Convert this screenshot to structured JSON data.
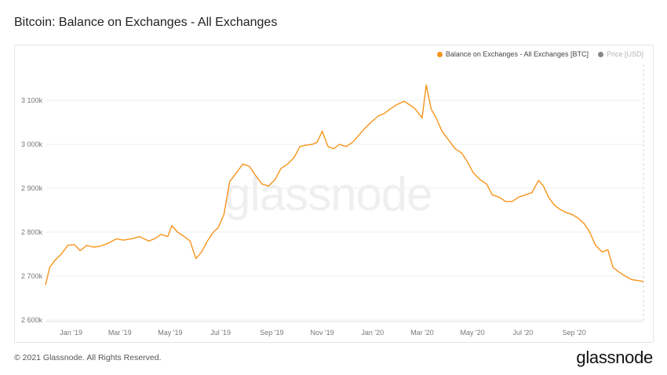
{
  "title": "Bitcoin: Balance on Exchanges - All Exchanges",
  "footer": {
    "copyright": "© 2021 Glassnode. All Rights Reserved.",
    "logo": "glassnode"
  },
  "watermark": "glassnode",
  "legend": {
    "series_label": "Balance on Exchanges - All Exchanges [BTC]",
    "series_color": "#f7931a",
    "price_label": "Price [USD]",
    "price_color": "#888888"
  },
  "chart_data": {
    "type": "line",
    "title": "Bitcoin: Balance on Exchanges - All Exchanges",
    "xlabel": "",
    "ylabel": "",
    "ylim": [
      2600000,
      3200000
    ],
    "xlim": [
      "2018-12-01",
      "2020-11-24"
    ],
    "grid": true,
    "legend_position": "top-right",
    "y_ticks": [
      {
        "value": 2600000,
        "label": "2 600k"
      },
      {
        "value": 2700000,
        "label": "2 700k"
      },
      {
        "value": 2800000,
        "label": "2 800k"
      },
      {
        "value": 2900000,
        "label": "2 900k"
      },
      {
        "value": 3000000,
        "label": "3 000k"
      },
      {
        "value": 3100000,
        "label": "3 100k"
      }
    ],
    "x_ticks": [
      {
        "value": "2019-01-01",
        "label": "Jan '19"
      },
      {
        "value": "2019-03-01",
        "label": "Mar '19"
      },
      {
        "value": "2019-05-01",
        "label": "May '19"
      },
      {
        "value": "2019-07-01",
        "label": "Jul '19"
      },
      {
        "value": "2019-09-01",
        "label": "Sep '19"
      },
      {
        "value": "2019-11-01",
        "label": "Nov '19"
      },
      {
        "value": "2020-01-01",
        "label": "Jan '20"
      },
      {
        "value": "2020-03-01",
        "label": "Mar '20"
      },
      {
        "value": "2020-05-01",
        "label": "May '20"
      },
      {
        "value": "2020-07-01",
        "label": "Jul '20"
      },
      {
        "value": "2020-09-01",
        "label": "Sep '20"
      }
    ],
    "series": [
      {
        "name": "Balance on Exchanges - All Exchanges [BTC]",
        "color": "#f7931a",
        "x": [
          "2018-12-01",
          "2018-12-06",
          "2018-12-12",
          "2018-12-20",
          "2018-12-28",
          "2019-01-05",
          "2019-01-12",
          "2019-01-20",
          "2019-01-28",
          "2019-02-05",
          "2019-02-15",
          "2019-02-25",
          "2019-03-05",
          "2019-03-15",
          "2019-03-25",
          "2019-04-05",
          "2019-04-12",
          "2019-04-20",
          "2019-04-28",
          "2019-05-03",
          "2019-05-10",
          "2019-05-18",
          "2019-05-25",
          "2019-06-01",
          "2019-06-08",
          "2019-06-15",
          "2019-06-22",
          "2019-06-28",
          "2019-07-05",
          "2019-07-12",
          "2019-07-20",
          "2019-07-28",
          "2019-08-05",
          "2019-08-12",
          "2019-08-20",
          "2019-08-28",
          "2019-09-05",
          "2019-09-12",
          "2019-09-20",
          "2019-09-28",
          "2019-10-05",
          "2019-10-12",
          "2019-10-20",
          "2019-10-26",
          "2019-11-01",
          "2019-11-08",
          "2019-11-15",
          "2019-11-22",
          "2019-11-30",
          "2019-12-08",
          "2019-12-15",
          "2019-12-22",
          "2019-12-30",
          "2020-01-08",
          "2020-01-15",
          "2020-01-22",
          "2020-01-30",
          "2020-02-08",
          "2020-02-15",
          "2020-02-22",
          "2020-03-01",
          "2020-03-06",
          "2020-03-12",
          "2020-03-18",
          "2020-03-25",
          "2020-04-02",
          "2020-04-10",
          "2020-04-18",
          "2020-04-25",
          "2020-05-02",
          "2020-05-10",
          "2020-05-18",
          "2020-05-25",
          "2020-06-02",
          "2020-06-10",
          "2020-06-18",
          "2020-06-26",
          "2020-07-04",
          "2020-07-12",
          "2020-07-20",
          "2020-07-26",
          "2020-08-01",
          "2020-08-08",
          "2020-08-15",
          "2020-08-22",
          "2020-08-30",
          "2020-09-06",
          "2020-09-13",
          "2020-09-20",
          "2020-09-27",
          "2020-10-05",
          "2020-10-12",
          "2020-10-18",
          "2020-10-25",
          "2020-11-02",
          "2020-11-10",
          "2020-11-17",
          "2020-11-24"
        ],
        "values": [
          2680000,
          2720000,
          2735000,
          2750000,
          2770000,
          2772000,
          2758000,
          2770000,
          2766000,
          2768000,
          2775000,
          2785000,
          2782000,
          2785000,
          2790000,
          2780000,
          2785000,
          2795000,
          2790000,
          2815000,
          2800000,
          2790000,
          2780000,
          2740000,
          2755000,
          2780000,
          2800000,
          2810000,
          2840000,
          2915000,
          2935000,
          2955000,
          2950000,
          2930000,
          2910000,
          2905000,
          2920000,
          2945000,
          2955000,
          2970000,
          2995000,
          2998000,
          3000000,
          3005000,
          3030000,
          2995000,
          2990000,
          3000000,
          2995000,
          3005000,
          3020000,
          3035000,
          3050000,
          3065000,
          3070000,
          3080000,
          3090000,
          3098000,
          3090000,
          3080000,
          3060000,
          3135000,
          3080000,
          3060000,
          3030000,
          3010000,
          2990000,
          2980000,
          2960000,
          2935000,
          2920000,
          2910000,
          2885000,
          2880000,
          2870000,
          2870000,
          2880000,
          2885000,
          2890000,
          2918000,
          2905000,
          2880000,
          2862000,
          2852000,
          2845000,
          2840000,
          2832000,
          2820000,
          2800000,
          2770000,
          2755000,
          2760000,
          2720000,
          2710000,
          2700000,
          2692000,
          2690000,
          2688000
        ]
      }
    ]
  }
}
